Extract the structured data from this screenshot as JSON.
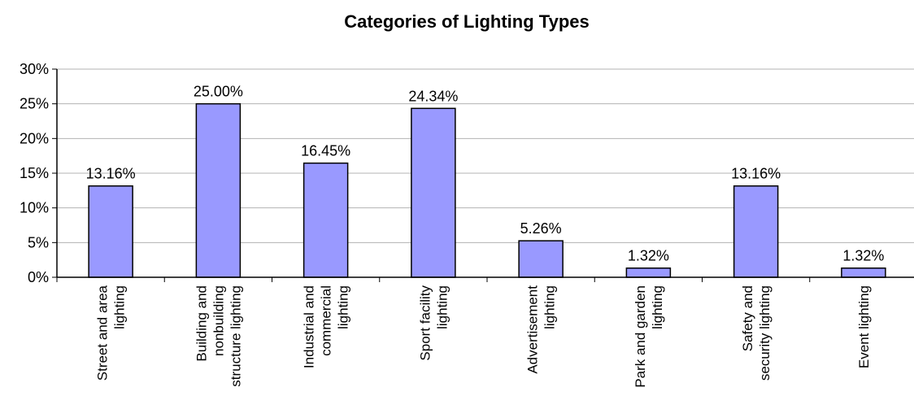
{
  "chart_data": {
    "type": "bar",
    "title": "Categories of Lighting Types",
    "xlabel": "",
    "ylabel": "",
    "categories": [
      [
        "Street and area",
        "lighting"
      ],
      [
        "Building and",
        "nonbuilding",
        "structure lighting"
      ],
      [
        "Industrial and",
        "commercial",
        "lighting"
      ],
      [
        "Sport facility",
        "lighting"
      ],
      [
        "Advertisement",
        "lighting"
      ],
      [
        "Park and garden",
        "lighting"
      ],
      [
        "Safety and",
        "security lighting"
      ],
      [
        "Event lighting"
      ]
    ],
    "values": [
      13.16,
      25.0,
      16.45,
      24.34,
      5.26,
      1.32,
      13.16,
      1.32
    ],
    "data_labels": [
      "13.16%",
      "25.00%",
      "16.45%",
      "24.34%",
      "5.26%",
      "1.32%",
      "13.16%",
      "1.32%"
    ],
    "ylim": [
      0,
      30
    ],
    "yticks": [
      0,
      5,
      10,
      15,
      20,
      25,
      30
    ],
    "ytick_labels": [
      "0%",
      "5%",
      "10%",
      "15%",
      "20%",
      "25%",
      "30%"
    ],
    "grid": true,
    "legend": "none",
    "colors": {
      "bar_fill": "#9999ff",
      "bar_stroke": "#000000",
      "grid": "#b3b3b3",
      "axis": "#000000"
    }
  }
}
